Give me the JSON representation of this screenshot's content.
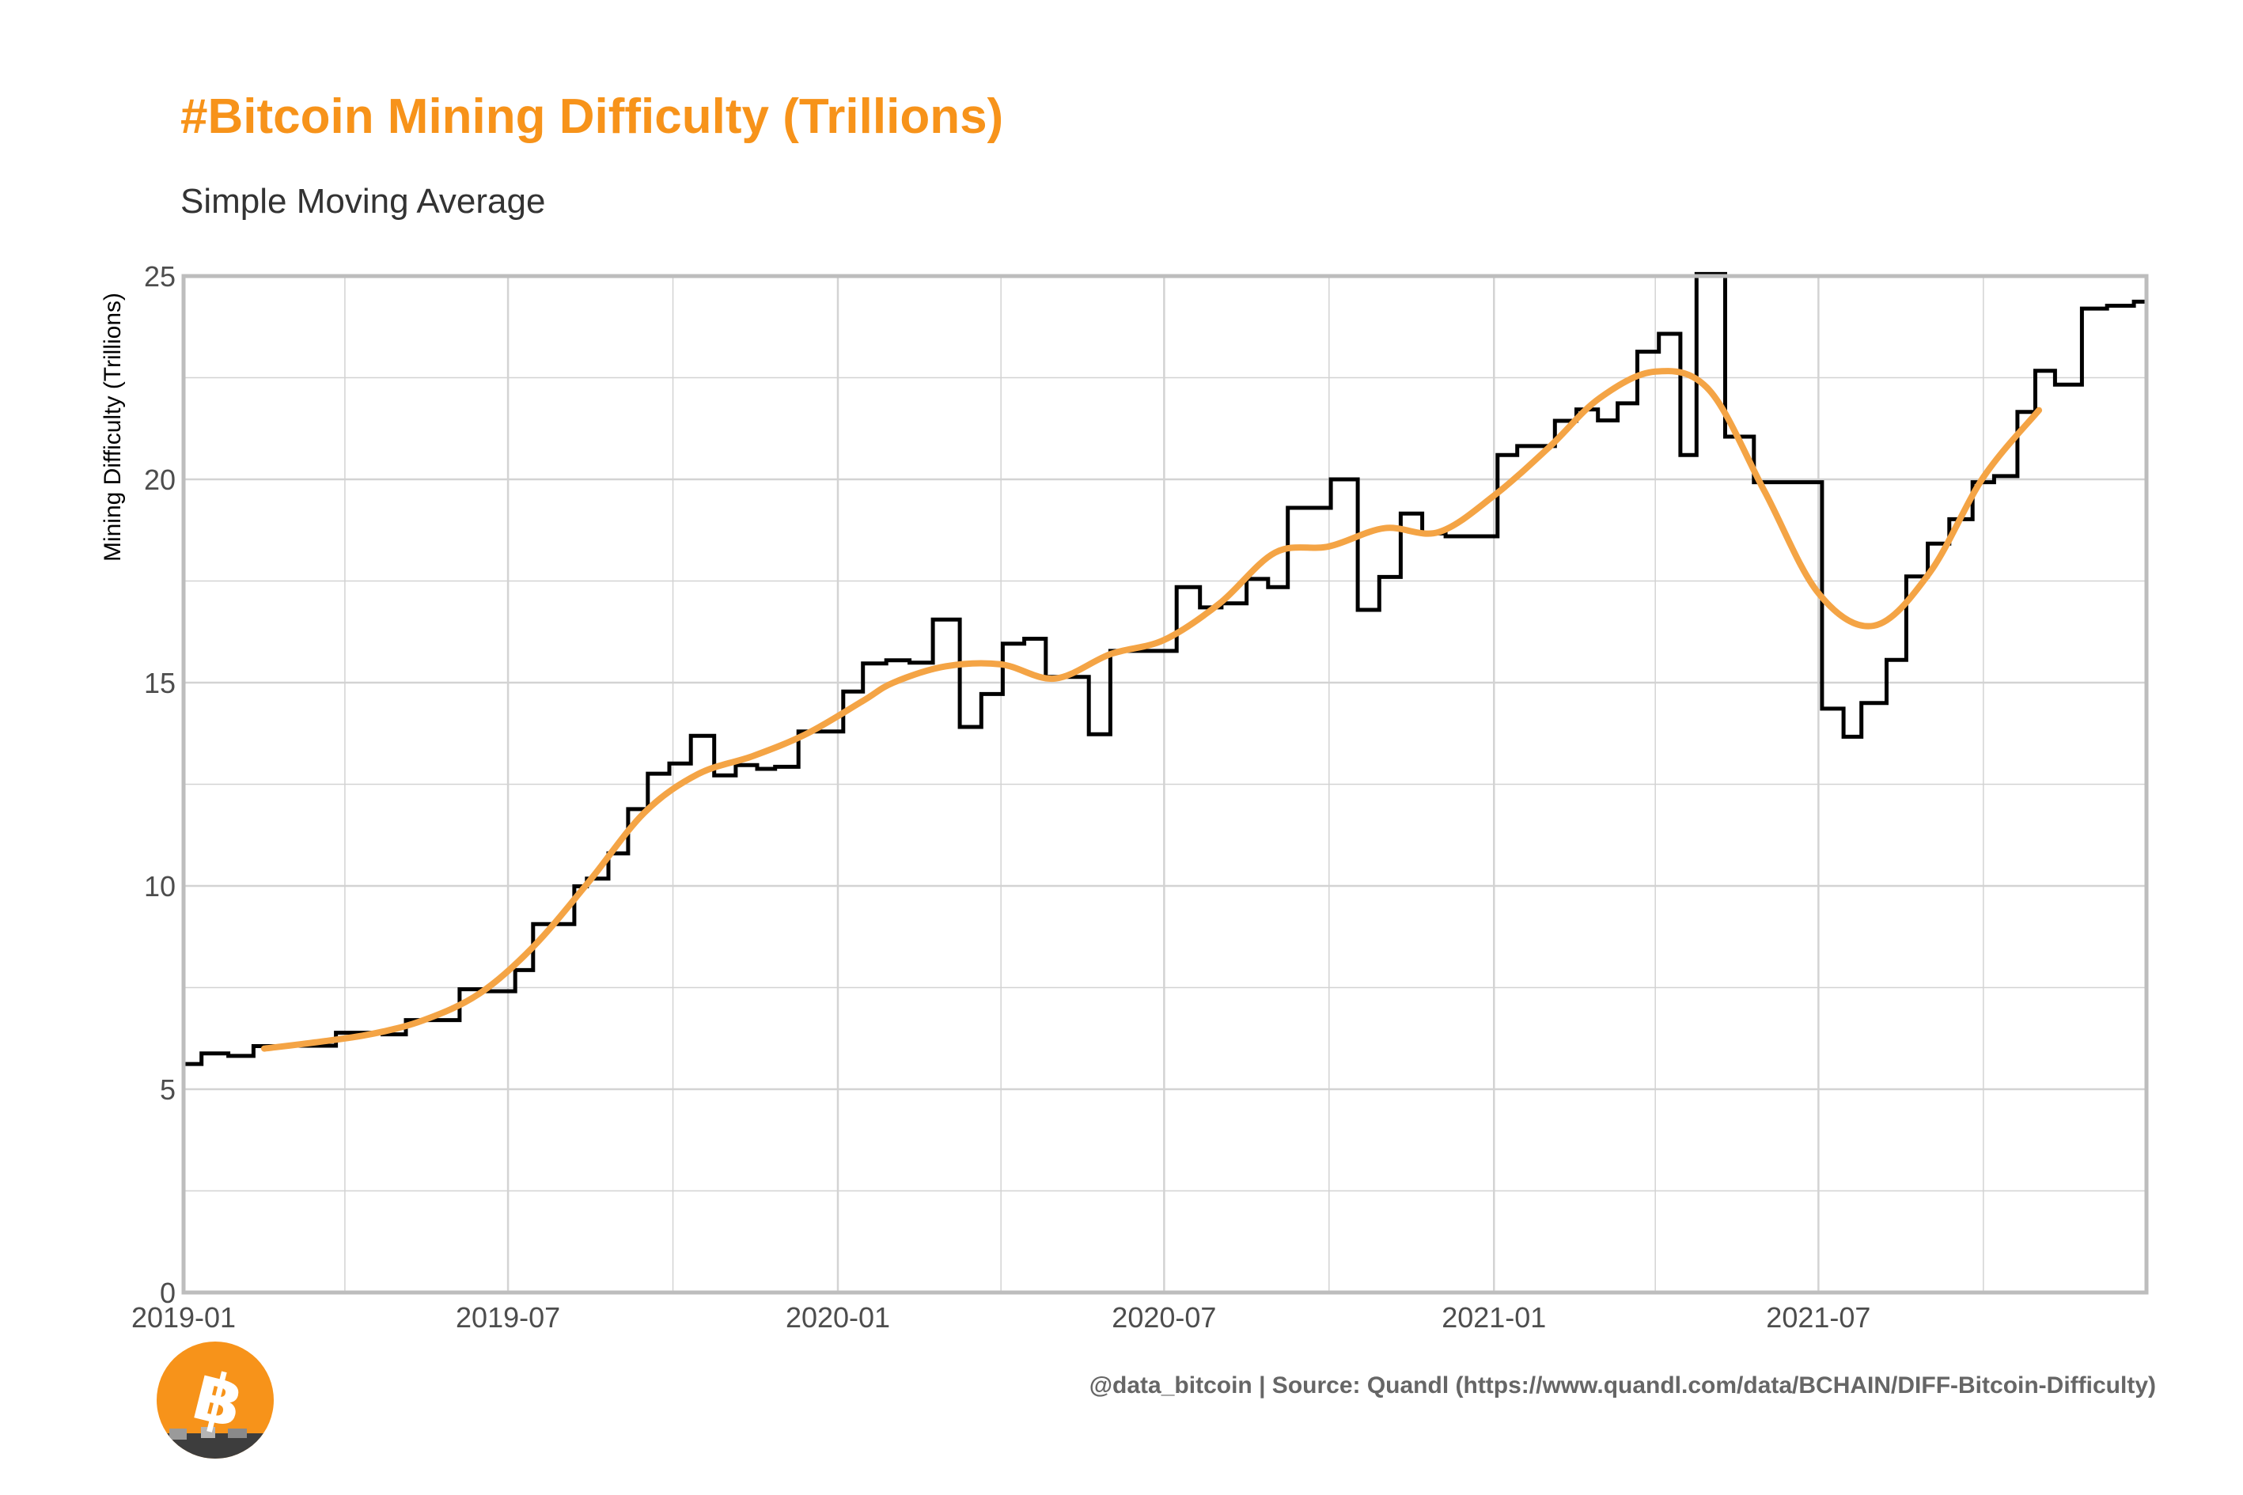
{
  "title": "#Bitcoin Mining Difficulty (Trillions)",
  "subtitle": "Simple Moving Average",
  "caption": "@data_bitcoin | Source: Quandl (https://www.quandl.com/data/BCHAIN/DIFF-Bitcoin-Difficulty)",
  "logo": "bitcoin-logo",
  "colors": {
    "accent": "#f7931a",
    "difficulty_line": "#000000",
    "sma_line": "#f4a445",
    "grid": "#d3d3d3",
    "panel_border": "#bdbdbd",
    "caption": "#666666"
  },
  "chart_data": {
    "type": "line",
    "title": "#Bitcoin Mining Difficulty (Trillions)",
    "subtitle": "Simple Moving Average",
    "xlabel": "",
    "ylabel": "Mining Difficulty (Trillions)",
    "xlim": [
      "2019-01-01",
      "2021-12-31"
    ],
    "ylim": [
      0,
      25
    ],
    "x_ticks": [
      "2019-01",
      "2019-07",
      "2020-01",
      "2020-07",
      "2021-01",
      "2021-07"
    ],
    "y_ticks": [
      0,
      5,
      10,
      15,
      20,
      25
    ],
    "grid": true,
    "legend": "none",
    "series": [
      {
        "style": "step",
        "color": "#000000",
        "points": [
          [
            "2019-01-01",
            5.62
          ],
          [
            "2019-01-11",
            5.88
          ],
          [
            "2019-01-26",
            5.82
          ],
          [
            "2019-02-09",
            6.06
          ],
          [
            "2019-02-24",
            6.07
          ],
          [
            "2019-03-10",
            6.07
          ],
          [
            "2019-03-27",
            6.39
          ],
          [
            "2019-04-10",
            6.39
          ],
          [
            "2019-04-22",
            6.35
          ],
          [
            "2019-05-05",
            6.7
          ],
          [
            "2019-05-18",
            6.7
          ],
          [
            "2019-05-30",
            6.7
          ],
          [
            "2019-06-04",
            7.46
          ],
          [
            "2019-06-16",
            7.41
          ],
          [
            "2019-06-28",
            7.41
          ],
          [
            "2019-07-05",
            7.93
          ],
          [
            "2019-07-15",
            9.06
          ],
          [
            "2019-07-27",
            9.06
          ],
          [
            "2019-08-07",
            9.99
          ],
          [
            "2019-08-14",
            10.18
          ],
          [
            "2019-08-26",
            10.8
          ],
          [
            "2019-09-06",
            11.89
          ],
          [
            "2019-09-17",
            12.76
          ],
          [
            "2019-09-29",
            13.01
          ],
          [
            "2019-10-11",
            13.69
          ],
          [
            "2019-10-24",
            12.72
          ],
          [
            "2019-11-05",
            12.97
          ],
          [
            "2019-11-17",
            12.88
          ],
          [
            "2019-11-27",
            12.93
          ],
          [
            "2019-12-10",
            13.8
          ],
          [
            "2019-12-23",
            13.8
          ],
          [
            "2020-01-04",
            14.78
          ],
          [
            "2020-01-15",
            15.47
          ],
          [
            "2020-01-28",
            15.55
          ],
          [
            "2020-02-10",
            15.49
          ],
          [
            "2020-02-23",
            16.55
          ],
          [
            "2020-03-09",
            13.91
          ],
          [
            "2020-03-21",
            14.72
          ],
          [
            "2020-04-02",
            15.96
          ],
          [
            "2020-04-14",
            16.08
          ],
          [
            "2020-04-26",
            15.14
          ],
          [
            "2020-05-08",
            15.14
          ],
          [
            "2020-05-20",
            13.73
          ],
          [
            "2020-06-01",
            15.78
          ],
          [
            "2020-06-14",
            15.78
          ],
          [
            "2020-06-27",
            15.78
          ],
          [
            "2020-07-08",
            17.35
          ],
          [
            "2020-07-21",
            16.85
          ],
          [
            "2020-08-02",
            16.95
          ],
          [
            "2020-08-16",
            17.55
          ],
          [
            "2020-08-28",
            17.35
          ],
          [
            "2020-09-08",
            19.3
          ],
          [
            "2020-09-20",
            19.3
          ],
          [
            "2020-10-02",
            20.0
          ],
          [
            "2020-10-17",
            16.79
          ],
          [
            "2020-10-29",
            17.6
          ],
          [
            "2020-11-10",
            19.16
          ],
          [
            "2020-11-22",
            18.67
          ],
          [
            "2020-12-05",
            18.6
          ],
          [
            "2020-12-18",
            18.6
          ],
          [
            "2021-01-03",
            20.6
          ],
          [
            "2021-01-14",
            20.82
          ],
          [
            "2021-01-26",
            20.82
          ],
          [
            "2021-02-04",
            21.44
          ],
          [
            "2021-02-16",
            21.72
          ],
          [
            "2021-02-28",
            21.45
          ],
          [
            "2021-03-11",
            21.87
          ],
          [
            "2021-03-22",
            23.14
          ],
          [
            "2021-04-03",
            23.58
          ],
          [
            "2021-04-15",
            20.6
          ],
          [
            "2021-04-24",
            25.05
          ],
          [
            "2021-05-10",
            21.05
          ],
          [
            "2021-05-26",
            19.93
          ],
          [
            "2021-06-09",
            19.93
          ],
          [
            "2021-06-24",
            19.93
          ],
          [
            "2021-07-03",
            14.36
          ],
          [
            "2021-07-15",
            13.67
          ],
          [
            "2021-07-25",
            14.5
          ],
          [
            "2021-08-08",
            15.56
          ],
          [
            "2021-08-19",
            17.61
          ],
          [
            "2021-08-31",
            18.42
          ],
          [
            "2021-09-12",
            19.02
          ],
          [
            "2021-09-25",
            19.93
          ],
          [
            "2021-10-07",
            20.08
          ],
          [
            "2021-10-20",
            21.66
          ],
          [
            "2021-10-30",
            22.67
          ],
          [
            "2021-11-10",
            22.33
          ],
          [
            "2021-11-25",
            24.2
          ],
          [
            "2021-12-09",
            24.27
          ],
          [
            "2021-12-24",
            24.37
          ],
          [
            "2021-12-31",
            24.37
          ]
        ]
      },
      {
        "style": "smooth",
        "color": "#f4a445",
        "points": [
          [
            "2019-02-15",
            6.0
          ],
          [
            "2019-03-15",
            6.15
          ],
          [
            "2019-04-15",
            6.35
          ],
          [
            "2019-05-15",
            6.7
          ],
          [
            "2019-06-15",
            7.35
          ],
          [
            "2019-07-15",
            8.5
          ],
          [
            "2019-08-15",
            10.1
          ],
          [
            "2019-09-15",
            11.8
          ],
          [
            "2019-10-15",
            12.75
          ],
          [
            "2019-11-15",
            13.2
          ],
          [
            "2019-12-15",
            13.75
          ],
          [
            "2020-01-15",
            14.55
          ],
          [
            "2020-02-01",
            15.0
          ],
          [
            "2020-03-01",
            15.4
          ],
          [
            "2020-04-01",
            15.45
          ],
          [
            "2020-05-01",
            15.1
          ],
          [
            "2020-06-01",
            15.7
          ],
          [
            "2020-07-01",
            16.05
          ],
          [
            "2020-08-01",
            16.95
          ],
          [
            "2020-09-01",
            18.2
          ],
          [
            "2020-10-01",
            18.35
          ],
          [
            "2020-11-01",
            18.8
          ],
          [
            "2020-12-01",
            18.7
          ],
          [
            "2021-01-01",
            19.6
          ],
          [
            "2021-02-01",
            20.8
          ],
          [
            "2021-03-01",
            22.0
          ],
          [
            "2021-04-01",
            22.65
          ],
          [
            "2021-05-01",
            22.2
          ],
          [
            "2021-06-01",
            19.7
          ],
          [
            "2021-07-01",
            17.2
          ],
          [
            "2021-08-01",
            16.4
          ],
          [
            "2021-09-01",
            17.7
          ],
          [
            "2021-10-01",
            20.05
          ],
          [
            "2021-11-01",
            21.7
          ]
        ]
      }
    ]
  }
}
